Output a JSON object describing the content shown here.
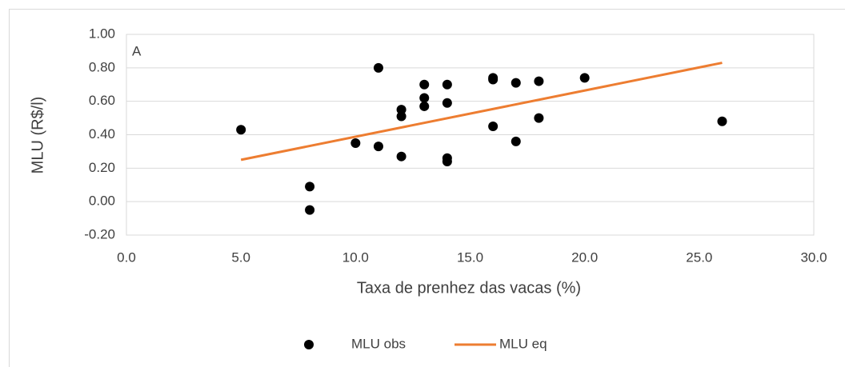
{
  "chart_data": {
    "type": "scatter",
    "annotation": "A",
    "xlabel": "Taxa de prenhez das vacas (%)",
    "ylabel": "MLU (R$/l)",
    "xlim": [
      0,
      30
    ],
    "xticks": [
      {
        "value": 0,
        "label": "0.0"
      },
      {
        "value": 5,
        "label": "5.0"
      },
      {
        "value": 10,
        "label": "10.0"
      },
      {
        "value": 15,
        "label": "15.0"
      },
      {
        "value": 20,
        "label": "20.0"
      },
      {
        "value": 25,
        "label": "25.0"
      },
      {
        "value": 30,
        "label": "30.0"
      }
    ],
    "ylim": [
      -0.2,
      1.0
    ],
    "yticks": [
      {
        "value": -0.2,
        "label": "-0.20"
      },
      {
        "value": 0,
        "label": "0.00"
      },
      {
        "value": 0.2,
        "label": "0.20"
      },
      {
        "value": 0.4,
        "label": "0.40"
      },
      {
        "value": 0.6,
        "label": "0.60"
      },
      {
        "value": 0.8,
        "label": "0.80"
      },
      {
        "value": 1.0,
        "label": "1.00"
      }
    ],
    "grid": true,
    "legend": "bottom",
    "series": [
      {
        "name": "MLU obs",
        "type": "scatter",
        "color": "#000000",
        "x": [
          5,
          8,
          8,
          10,
          11,
          11,
          12,
          12,
          12,
          13,
          13,
          13,
          14,
          14,
          14,
          14,
          16,
          16,
          16,
          17,
          17,
          18,
          18,
          20,
          26
        ],
        "values": [
          0.43,
          0.09,
          -0.05,
          0.35,
          0.8,
          0.33,
          0.55,
          0.51,
          0.27,
          0.7,
          0.62,
          0.57,
          0.7,
          0.59,
          0.26,
          0.24,
          0.74,
          0.73,
          0.45,
          0.71,
          0.36,
          0.72,
          0.5,
          0.74,
          0.48
        ]
      },
      {
        "name": "MLU eq",
        "type": "line",
        "color": "#ed7d31",
        "x": [
          5,
          26
        ],
        "values": [
          0.25,
          0.83
        ]
      }
    ]
  }
}
